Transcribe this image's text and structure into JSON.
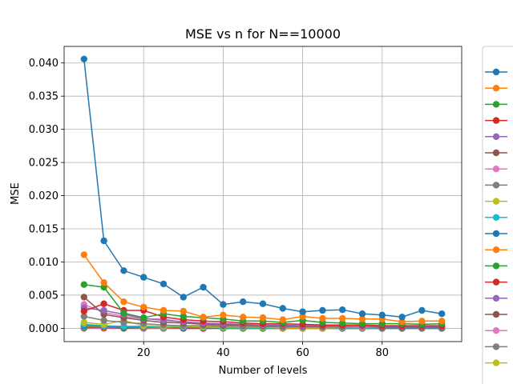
{
  "chart_data": {
    "type": "line",
    "title": "MSE vs n for N==10000",
    "xlabel": "Number of levels",
    "ylabel": "MSE",
    "xlim": [
      0,
      100
    ],
    "ylim": [
      -0.002,
      0.0425
    ],
    "x_ticks": [
      "20",
      "40",
      "60",
      "80"
    ],
    "y_ticks": [
      "0.000",
      "0.005",
      "0.010",
      "0.015",
      "0.020",
      "0.025",
      "0.030",
      "0.035",
      "0.040"
    ],
    "grid": true,
    "legend_position": "right, partially cut off",
    "x": [
      5,
      10,
      15,
      20,
      25,
      30,
      35,
      40,
      45,
      50,
      55,
      60,
      65,
      70,
      75,
      80,
      85,
      90,
      95
    ],
    "series": [
      {
        "color": "#1f77b4",
        "values": [
          0.0406,
          0.0132,
          0.0087,
          0.0077,
          0.0067,
          0.0047,
          0.0062,
          0.0036,
          0.004,
          0.0037,
          0.003,
          0.0025,
          0.0027,
          0.0028,
          0.0022,
          0.002,
          0.0017,
          0.0027,
          0.0022
        ]
      },
      {
        "color": "#ff7f0e",
        "values": [
          0.0111,
          0.0069,
          0.004,
          0.0032,
          0.0027,
          0.0026,
          0.0017,
          0.002,
          0.0017,
          0.0016,
          0.0013,
          0.0018,
          0.0015,
          0.0015,
          0.0014,
          0.0014,
          0.001,
          0.0011,
          0.0011
        ]
      },
      {
        "color": "#2ca02c",
        "values": [
          0.0066,
          0.0062,
          0.0023,
          0.0016,
          0.0022,
          0.0018,
          0.0016,
          0.0014,
          0.0011,
          0.0011,
          0.0009,
          0.0012,
          0.0009,
          0.0008,
          0.0007,
          0.0007,
          0.0007,
          0.0006,
          0.0007
        ]
      },
      {
        "color": "#d62728",
        "values": [
          0.0026,
          0.0037,
          0.0027,
          0.0027,
          0.0017,
          0.0013,
          0.0011,
          0.001,
          0.0008,
          0.0007,
          0.0007,
          0.0006,
          0.0005,
          0.0005,
          0.0005,
          0.0004,
          0.0004,
          0.0004,
          0.0004
        ]
      },
      {
        "color": "#9467bd",
        "values": [
          0.0031,
          0.0027,
          0.0021,
          0.0015,
          0.0012,
          0.001,
          0.0008,
          0.0007,
          0.0006,
          0.0005,
          0.0005,
          0.0004,
          0.0004,
          0.0004,
          0.0003,
          0.0003,
          0.0003,
          0.0003,
          0.0003
        ]
      },
      {
        "color": "#8c564b",
        "values": [
          0.0047,
          0.0021,
          0.0016,
          0.0012,
          0.0009,
          0.0008,
          0.0006,
          0.0005,
          0.0005,
          0.0004,
          0.0004,
          0.0003,
          0.0003,
          0.0003,
          0.0003,
          0.0002,
          0.0002,
          0.0002,
          0.0002
        ]
      },
      {
        "color": "#e377c2",
        "values": [
          0.0036,
          0.0024,
          0.0018,
          0.0014,
          0.0014,
          0.0009,
          0.0007,
          0.0006,
          0.0005,
          0.0004,
          0.0004,
          0.0003,
          0.0003,
          0.0003,
          0.0002,
          0.0002,
          0.0002,
          0.0002,
          0.0002
        ]
      },
      {
        "color": "#7f7f7f",
        "values": [
          0.0018,
          0.0012,
          0.0009,
          0.0007,
          0.0005,
          0.0004,
          0.0004,
          0.0003,
          0.0003,
          0.0003,
          0.0002,
          0.0002,
          0.0002,
          0.0002,
          0.0002,
          0.0001,
          0.0001,
          0.0001,
          0.0001
        ]
      },
      {
        "color": "#bcbd22",
        "values": [
          0.0009,
          0.0006,
          0.0012,
          0.0004,
          0.0003,
          0.0003,
          0.0002,
          0.0002,
          0.0002,
          0.0002,
          0.0001,
          0.0001,
          0.0001,
          0.0001,
          0.0001,
          0.0001,
          0.0001,
          0.0001,
          0.0001
        ]
      },
      {
        "color": "#17becf",
        "values": [
          0.0006,
          0.0004,
          0.0003,
          0.0003,
          0.0002,
          0.0002,
          0.0002,
          0.0001,
          0.0001,
          0.0001,
          0.0001,
          0.0001,
          0.0001,
          0.0001,
          0.0001,
          0.0001,
          0.0001,
          0.0001,
          0.0001
        ]
      },
      {
        "color": "#1f77b4",
        "values": [
          0.0004,
          0.0003,
          0.0002,
          0.0002,
          0.0002,
          0.0001,
          0.0001,
          0.0001,
          0.0001,
          0.0001,
          0.0001,
          0.0001,
          0.0001,
          0.0,
          0.0,
          0.0,
          0.0,
          0.0,
          0.0
        ]
      },
      {
        "color": "#ff7f0e",
        "values": [
          0.0003,
          0.0002,
          0.0002,
          0.0001,
          0.0001,
          0.0001,
          0.0001,
          0.0001,
          0.0001,
          0.0001,
          0.0,
          0.0,
          0.0,
          0.0,
          0.0,
          0.0,
          0.0,
          0.0,
          0.0
        ]
      },
      {
        "color": "#2ca02c",
        "values": [
          0.0002,
          0.0002,
          0.0001,
          0.0001,
          0.0001,
          0.0001,
          0.0001,
          0.0,
          0.0,
          0.0,
          0.0,
          0.0,
          0.0,
          0.0,
          0.0,
          0.0,
          0.0,
          0.0,
          0.0
        ]
      },
      {
        "color": "#d62728",
        "values": [
          0.0002,
          0.0001,
          0.0001,
          0.0001,
          0.0001,
          0.0,
          0.0,
          0.0,
          0.0,
          0.0,
          0.0,
          0.0,
          0.0,
          0.0,
          0.0,
          0.0,
          0.0,
          0.0,
          0.0
        ]
      },
      {
        "color": "#9467bd",
        "values": [
          0.0001,
          0.0001,
          0.0001,
          0.0,
          0.0,
          0.0,
          0.0,
          0.0,
          0.0,
          0.0,
          0.0,
          0.0,
          0.0,
          0.0,
          0.0,
          0.0,
          0.0,
          0.0,
          0.0
        ]
      },
      {
        "color": "#8c564b",
        "values": [
          0.0001,
          0.0001,
          0.0,
          0.0,
          0.0,
          0.0,
          0.0,
          0.0,
          0.0,
          0.0,
          0.0,
          0.0,
          0.0,
          0.0,
          0.0,
          0.0,
          0.0,
          0.0,
          0.0
        ]
      },
      {
        "color": "#e377c2",
        "values": [
          0.0001,
          0.0,
          0.0,
          0.0,
          0.0,
          0.0,
          0.0,
          0.0,
          0.0,
          0.0,
          0.0,
          0.0,
          0.0,
          0.0,
          0.0,
          0.0,
          0.0,
          0.0,
          0.0
        ]
      },
      {
        "color": "#7f7f7f",
        "values": [
          0.0,
          0.0,
          0.0,
          0.0,
          0.0,
          0.0,
          0.0,
          0.0,
          0.0,
          0.0,
          0.0,
          0.0,
          0.0,
          0.0,
          0.0,
          0.0,
          0.0,
          0.0,
          0.0
        ]
      },
      {
        "color": "#bcbd22",
        "values": [
          0.0,
          0.0,
          0.0,
          0.0,
          0.0,
          0.0,
          0.0,
          0.0,
          0.0,
          0.0,
          0.0,
          0.0,
          0.0,
          0.0,
          0.0,
          0.0,
          0.0,
          0.0,
          0.0
        ]
      }
    ]
  }
}
